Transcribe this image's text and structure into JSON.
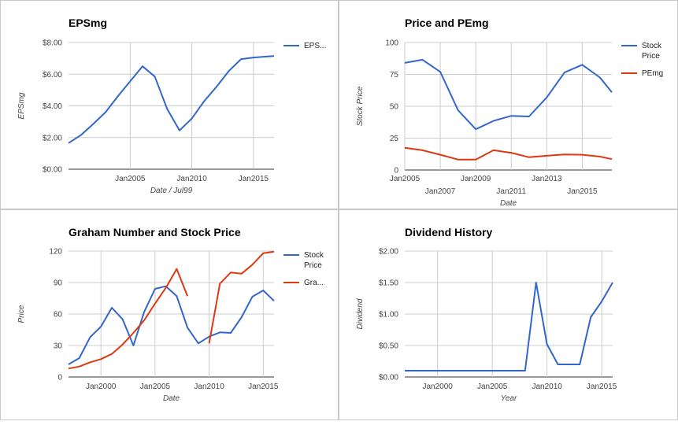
{
  "colors": {
    "blue": "#3366cc",
    "red": "#dc3912"
  },
  "chart_data": [
    {
      "type": "line",
      "title": "EPSmg",
      "xlabel": "Date / Jul99",
      "ylabel": "EPSmg",
      "x_type": "date",
      "xlim": [
        "2000-01-01",
        "2016-09-01"
      ],
      "ylim": [
        0,
        8
      ],
      "yticks": [
        0,
        2,
        4,
        6,
        8
      ],
      "ytick_labels": [
        "$0.00",
        "$2.00",
        "$4.00",
        "$6.00",
        "$8.00"
      ],
      "xticks": [
        "2005-01-01",
        "2010-01-01",
        "2015-01-01"
      ],
      "xtick_labels": [
        "Jan2005",
        "Jan2010",
        "Jan2015"
      ],
      "grid": true,
      "legend_position": "right",
      "series": [
        {
          "name": "EPS...",
          "color": "#3366cc",
          "x": [
            "2000-01-01",
            "2001-01-01",
            "2002-01-01",
            "2003-01-01",
            "2004-01-01",
            "2005-01-01",
            "2006-01-01",
            "2007-01-01",
            "2008-01-01",
            "2009-01-01",
            "2010-01-01",
            "2011-01-01",
            "2012-01-01",
            "2013-01-01",
            "2014-01-01",
            "2015-01-01",
            "2016-09-01"
          ],
          "y": [
            1.65,
            2.15,
            2.85,
            3.6,
            4.6,
            5.55,
            6.5,
            5.85,
            3.8,
            2.45,
            3.2,
            4.3,
            5.2,
            6.2,
            6.95,
            7.05,
            7.15
          ]
        }
      ]
    },
    {
      "type": "line",
      "title": "Price and PEmg",
      "xlabel": "Date",
      "ylabel": "Stock Price",
      "x_type": "date",
      "xlim": [
        "2005-01-01",
        "2016-09-01"
      ],
      "ylim": [
        0,
        100
      ],
      "yticks": [
        0,
        25,
        50,
        75,
        100
      ],
      "ytick_labels": [
        "0",
        "25",
        "50",
        "75",
        "100"
      ],
      "xticks": [
        "2005-01-01",
        "2007-01-01",
        "2009-01-01",
        "2011-01-01",
        "2013-01-01",
        "2015-01-01"
      ],
      "xtick_labels": [
        "Jan2005",
        "Jan2007",
        "Jan2009",
        "Jan2011",
        "Jan2013",
        "Jan2015"
      ],
      "grid": true,
      "legend_position": "right",
      "series": [
        {
          "name": "Stock Price",
          "color": "#3366cc",
          "x": [
            "2005-01-01",
            "2006-01-01",
            "2007-01-01",
            "2008-01-01",
            "2009-01-01",
            "2010-01-01",
            "2011-01-01",
            "2012-01-01",
            "2013-01-01",
            "2014-01-01",
            "2015-01-01",
            "2016-01-01",
            "2016-09-01"
          ],
          "y": [
            84,
            86.5,
            77,
            47,
            32,
            38.5,
            42.5,
            42,
            57,
            76.5,
            82.5,
            72.5,
            61
          ]
        },
        {
          "name": "PEmg",
          "color": "#dc3912",
          "x": [
            "2005-01-01",
            "2006-01-01",
            "2007-01-01",
            "2008-01-01",
            "2009-01-01",
            "2010-01-01",
            "2011-01-01",
            "2012-01-01",
            "2013-01-01",
            "2014-01-01",
            "2015-01-01",
            "2016-01-01",
            "2016-09-01"
          ],
          "y": [
            17.5,
            15.5,
            12,
            8.2,
            8.2,
            15.5,
            13.5,
            10,
            11.2,
            12.2,
            12,
            10.5,
            8.5
          ]
        }
      ]
    },
    {
      "type": "line",
      "title": "Graham Number and Stock Price",
      "xlabel": "Date",
      "ylabel": "Price",
      "x_type": "date",
      "xlim": [
        "1997-01-01",
        "2016-01-01"
      ],
      "ylim": [
        0,
        120
      ],
      "yticks": [
        0,
        30,
        60,
        90,
        120
      ],
      "ytick_labels": [
        "0",
        "30",
        "60",
        "90",
        "120"
      ],
      "xticks": [
        "2000-01-01",
        "2005-01-01",
        "2010-01-01",
        "2015-01-01"
      ],
      "xtick_labels": [
        "Jan2000",
        "Jan2005",
        "Jan2010",
        "Jan2015"
      ],
      "grid": true,
      "legend_position": "right",
      "series": [
        {
          "name": "Stock Price",
          "color": "#3366cc",
          "x": [
            "1997-01-01",
            "1998-01-01",
            "1999-01-01",
            "2000-01-01",
            "2001-01-01",
            "2002-01-01",
            "2003-01-01",
            "2004-01-01",
            "2005-01-01",
            "2006-01-01",
            "2007-01-01",
            "2008-01-01",
            "2009-01-01",
            "2010-01-01",
            "2011-01-01",
            "2012-01-01",
            "2013-01-01",
            "2014-01-01",
            "2015-01-01",
            "2016-01-01"
          ],
          "y": [
            12,
            18,
            38,
            48,
            66,
            55,
            30,
            62,
            84,
            86.5,
            77,
            47,
            32,
            38.5,
            42.5,
            42,
            57,
            76.5,
            82.5,
            72.5
          ]
        },
        {
          "name": "Gra...",
          "color": "#dc3912",
          "segments": [
            {
              "x": [
                "1997-01-01",
                "1998-01-01",
                "1999-01-01",
                "2000-01-01",
                "2001-01-01",
                "2002-01-01",
                "2003-01-01",
                "2004-01-01",
                "2005-01-01",
                "2006-01-01",
                "2007-01-01",
                "2008-01-01"
              ],
              "y": [
                8,
                10,
                14,
                17,
                22,
                31,
                42,
                54,
                70,
                85,
                103,
                77
              ]
            },
            {
              "x": [
                "2010-01-01",
                "2011-01-01",
                "2012-01-01",
                "2013-01-01",
                "2014-01-01",
                "2015-01-01",
                "2016-01-01"
              ],
              "y": [
                32,
                89,
                99.5,
                98.5,
                107,
                118,
                119.5
              ]
            }
          ]
        }
      ]
    },
    {
      "type": "line",
      "title": "Dividend History",
      "xlabel": "Year",
      "ylabel": "Dividend",
      "x_type": "date",
      "xlim": [
        "1997-01-01",
        "2016-01-01"
      ],
      "ylim": [
        0,
        2
      ],
      "yticks": [
        0,
        0.5,
        1,
        1.5,
        2
      ],
      "ytick_labels": [
        "$0.00",
        "$0.50",
        "$1.00",
        "$1.50",
        "$2.00"
      ],
      "xticks": [
        "2000-01-01",
        "2005-01-01",
        "2010-01-01",
        "2015-01-01"
      ],
      "xtick_labels": [
        "Jan2000",
        "Jan2005",
        "Jan2010",
        "Jan2015"
      ],
      "grid": true,
      "legend_position": "none",
      "series": [
        {
          "name": "",
          "color": "#3366cc",
          "x": [
            "1997-01-01",
            "1998-01-01",
            "1999-01-01",
            "2000-01-01",
            "2001-01-01",
            "2002-01-01",
            "2003-01-01",
            "2004-01-01",
            "2005-01-01",
            "2006-01-01",
            "2007-01-01",
            "2008-01-01",
            "2009-01-01",
            "2010-01-01",
            "2011-01-01",
            "2012-01-01",
            "2013-01-01",
            "2014-01-01",
            "2015-01-01",
            "2016-01-01"
          ],
          "y": [
            0.1,
            0.1,
            0.1,
            0.1,
            0.1,
            0.1,
            0.1,
            0.1,
            0.1,
            0.1,
            0.1,
            0.1,
            1.5,
            0.52,
            0.2,
            0.2,
            0.2,
            0.95,
            1.2,
            1.5
          ]
        }
      ]
    }
  ]
}
